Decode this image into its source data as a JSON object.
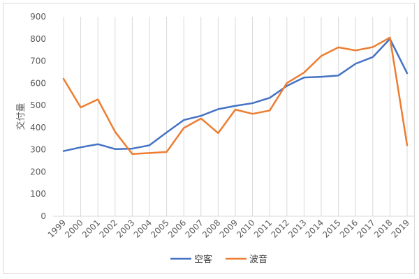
{
  "chart_data": {
    "type": "line",
    "ylabel": "交付量",
    "ylim": [
      0,
      900
    ],
    "yticks": [
      0,
      100,
      200,
      300,
      400,
      500,
      600,
      700,
      800,
      900
    ],
    "categories": [
      "1999",
      "2000",
      "2001",
      "2002",
      "2003",
      "2004",
      "2005",
      "2006",
      "2007",
      "2008",
      "2009",
      "2010",
      "2011",
      "2012",
      "2013",
      "2014",
      "2015",
      "2016",
      "2017",
      "2018",
      "2019"
    ],
    "grid": "vertical",
    "legend_position": "bottom",
    "series": [
      {
        "name": "空客",
        "color": "#4472c4",
        "values": [
          294,
          311,
          325,
          303,
          305,
          320,
          378,
          434,
          453,
          483,
          498,
          510,
          534,
          588,
          626,
          629,
          635,
          688,
          718,
          800,
          645
        ]
      },
      {
        "name": "波音",
        "color": "#ed7d31",
        "values": [
          620,
          491,
          527,
          381,
          281,
          285,
          290,
          398,
          441,
          375,
          481,
          462,
          477,
          601,
          648,
          723,
          762,
          748,
          763,
          806,
          320
        ]
      }
    ]
  }
}
